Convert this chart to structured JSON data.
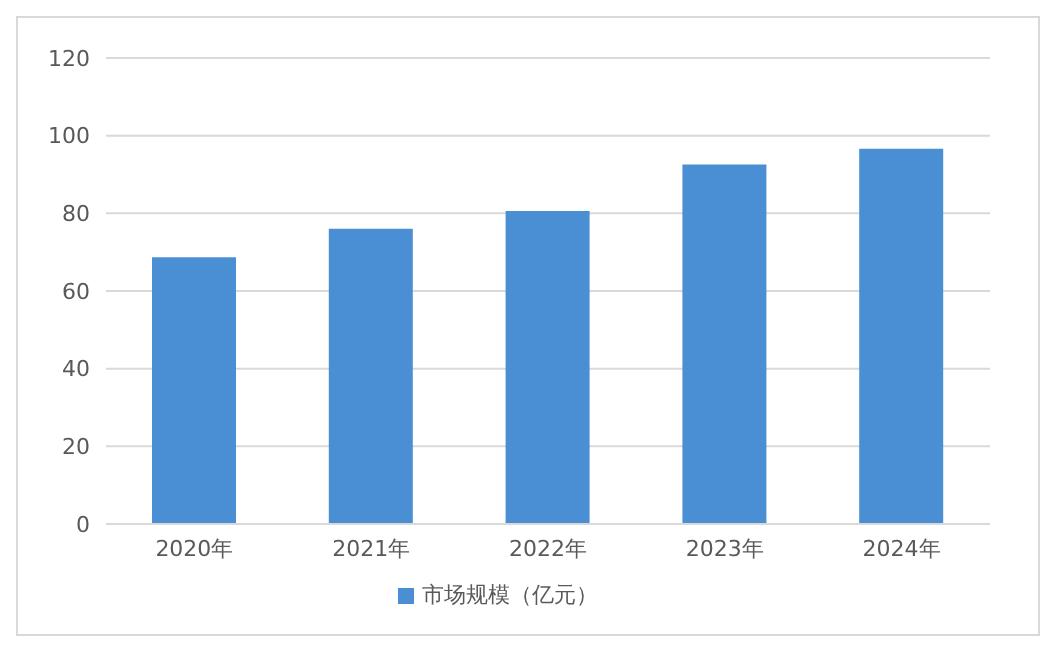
{
  "chart_data": {
    "type": "bar",
    "categories": [
      "2020年",
      "2021年",
      "2022年",
      "2023年",
      "2024年"
    ],
    "series": [
      {
        "name": "市场规模（亿元）",
        "color": "#4a8fd4",
        "values": [
          68.7,
          76.0,
          80.6,
          92.6,
          96.6
        ]
      }
    ],
    "ylim": [
      0,
      120
    ],
    "yticks": [
      0,
      20,
      40,
      60,
      80,
      100,
      120
    ],
    "grid": "y",
    "legend": "bottom"
  }
}
